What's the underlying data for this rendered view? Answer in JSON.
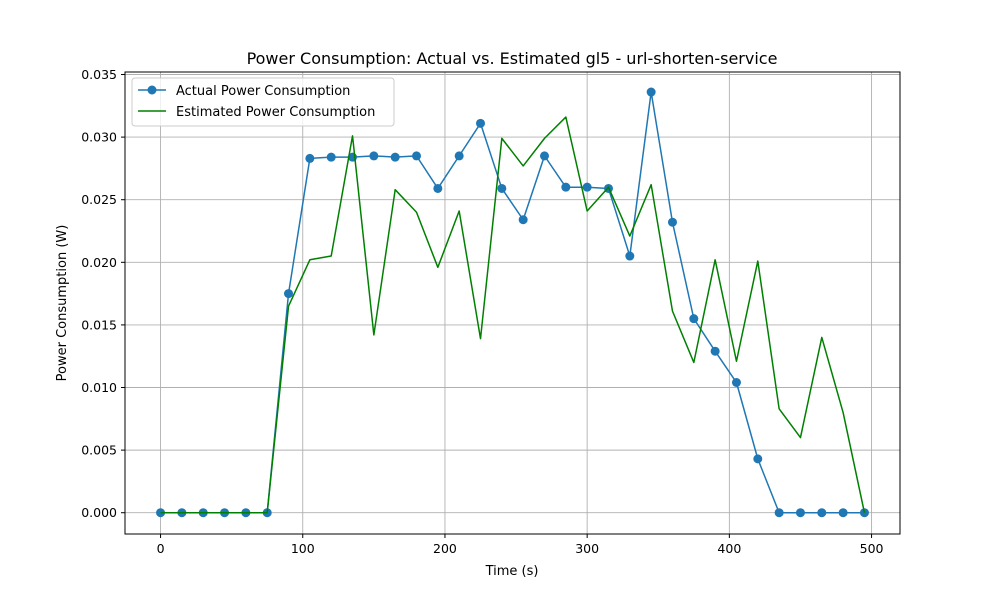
{
  "chart_data": {
    "type": "line",
    "title": "Power Consumption: Actual vs. Estimated gl5 - url-shorten-service",
    "xlabel": "Time (s)",
    "ylabel": "Power Consumption (W)",
    "xlim": [
      -25,
      520
    ],
    "ylim": [
      -0.0017,
      0.0352
    ],
    "xticks": [
      0,
      100,
      200,
      300,
      400,
      500
    ],
    "yticks": [
      0.0,
      0.005,
      0.01,
      0.015,
      0.02,
      0.025,
      0.03,
      0.035
    ],
    "xtick_labels": [
      "0",
      "100",
      "200",
      "300",
      "400",
      "500"
    ],
    "ytick_labels": [
      "0.000",
      "0.005",
      "0.010",
      "0.015",
      "0.020",
      "0.025",
      "0.030",
      "0.035"
    ],
    "grid": true,
    "legend_position": "top-left",
    "x": [
      0,
      15,
      30,
      45,
      60,
      75,
      90,
      105,
      120,
      135,
      150,
      165,
      180,
      195,
      210,
      225,
      240,
      255,
      270,
      285,
      300,
      315,
      330,
      345,
      360,
      375,
      390,
      405,
      420,
      435,
      450,
      465,
      480,
      495
    ],
    "series": [
      {
        "name": "Actual Power Consumption",
        "color": "#1f77b4",
        "marker": "circle",
        "values": [
          0,
          0,
          0,
          0,
          0,
          0,
          0.0175,
          0.0283,
          0.0284,
          0.0284,
          0.0285,
          0.0284,
          0.0285,
          0.0259,
          0.0285,
          0.0311,
          0.0259,
          0.0234,
          0.0285,
          0.026,
          0.026,
          0.0259,
          0.0205,
          0.0336,
          0.0232,
          0.0155,
          0.0129,
          0.0104,
          0.0043,
          0,
          0,
          0,
          0,
          0
        ]
      },
      {
        "name": "Estimated Power Consumption",
        "color": "#008000",
        "marker": "none",
        "values": [
          0,
          0,
          0,
          0,
          0,
          0,
          0.0165,
          0.0202,
          0.0205,
          0.0301,
          0.0142,
          0.0258,
          0.024,
          0.0196,
          0.0241,
          0.0139,
          0.0299,
          0.0277,
          0.0299,
          0.0316,
          0.0241,
          0.026,
          0.0221,
          0.0262,
          0.0161,
          0.012,
          0.0202,
          0.0121,
          0.0201,
          0.0083,
          0.006,
          0.014,
          0.008,
          0
        ]
      }
    ]
  }
}
